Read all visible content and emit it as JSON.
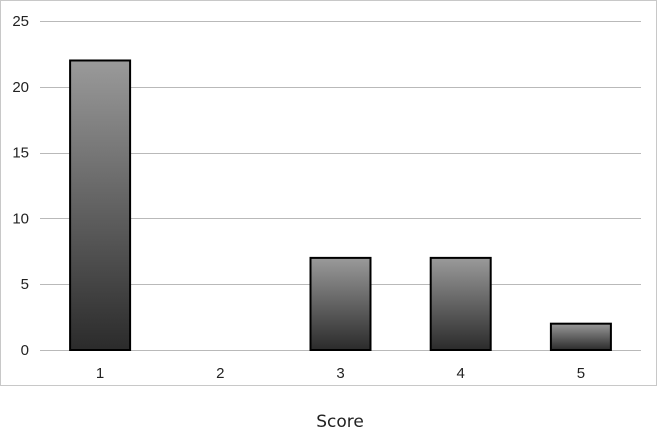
{
  "chart_data": {
    "type": "bar",
    "categories": [
      "1",
      "2",
      "3",
      "4",
      "5"
    ],
    "values": [
      22,
      0,
      7,
      7,
      2
    ],
    "title": "",
    "xlabel": "Score",
    "ylabel": "",
    "ylim": [
      0,
      25
    ],
    "yticks": [
      0,
      5,
      10,
      15,
      20,
      25
    ],
    "grid": true,
    "legend": "none",
    "colors": {
      "bar_top": "#9a9a9a",
      "bar_bottom": "#2b2b2b",
      "bar_stroke": "#000000",
      "grid": "#b9b9b9",
      "frame": "#c8c8c8"
    }
  }
}
